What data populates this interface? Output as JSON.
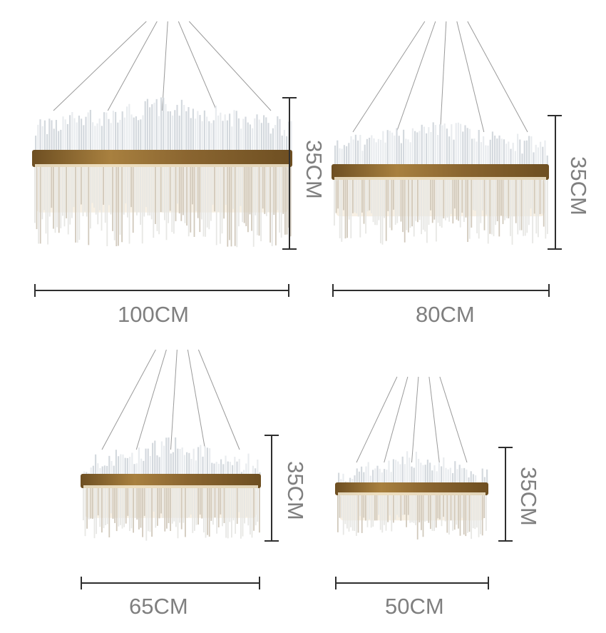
{
  "products": [
    {
      "height_label": "35CM",
      "width_label": "100CM"
    },
    {
      "height_label": "35CM",
      "width_label": "80CM"
    },
    {
      "height_label": "35CM",
      "width_label": "65CM"
    },
    {
      "height_label": "35CM",
      "width_label": "50CM"
    }
  ],
  "colors": {
    "ring": "#a8803f",
    "crystal": "#e6e9ec",
    "label": "#7f7f7f",
    "dimension_line": "#2e2e2e"
  }
}
